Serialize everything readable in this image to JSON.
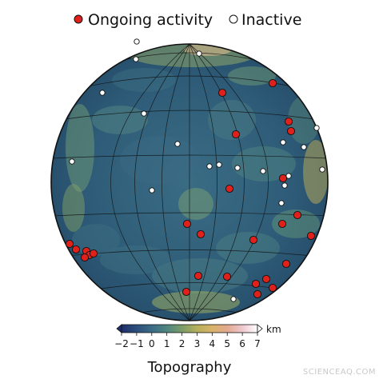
{
  "legend": {
    "ongoing_label": "Ongoing activity",
    "inactive_label": "Inactive"
  },
  "colors": {
    "ongoing_fill": "#e0201b",
    "inactive_fill": "#ffffff",
    "graticule": "#101010",
    "globe_base": "#2d5a78"
  },
  "colorbar": {
    "title": "Topography",
    "unit": "km",
    "ticks": [
      "−2",
      "−1",
      "0",
      "1",
      "2",
      "3",
      "4",
      "5",
      "6",
      "7"
    ],
    "range_km": [
      -2,
      7
    ],
    "colors": [
      "#1f2f6b",
      "#2c4f7d",
      "#3a6b85",
      "#4f8680",
      "#7a9c68",
      "#b6b05a",
      "#d9b36a",
      "#e3a98f",
      "#eec7cf",
      "#ffffff"
    ]
  },
  "watermark": "SCIENCEAQ.COM"
}
